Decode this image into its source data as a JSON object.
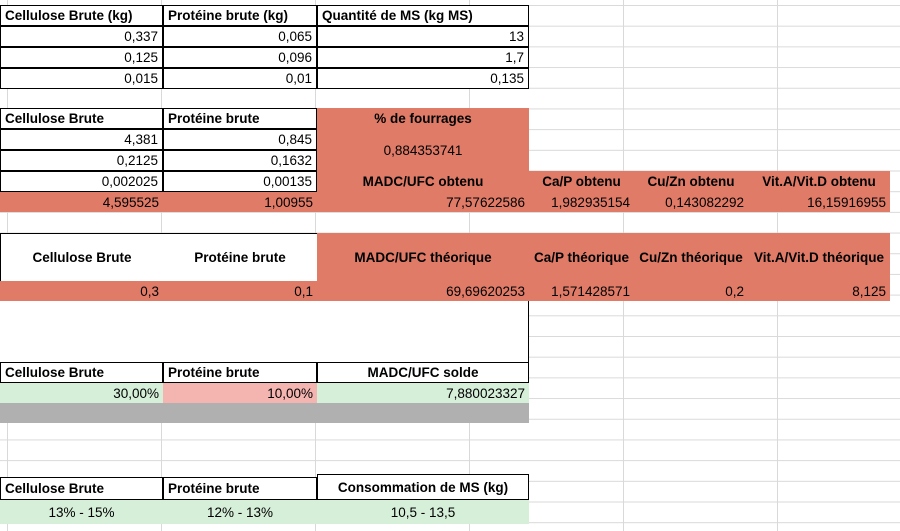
{
  "table1": {
    "headers": [
      "Cellulose Brute (kg)",
      "Protéine brute (kg)",
      "Quantité de MS (kg MS)"
    ],
    "rows": [
      [
        "0,337",
        "0,065",
        "13"
      ],
      [
        "0,125",
        "0,096",
        "1,7"
      ],
      [
        "0,015",
        "0,01",
        "0,135"
      ]
    ]
  },
  "table2": {
    "headers": [
      "Cellulose Brute",
      "Protéine brute"
    ],
    "fourrages_label": "% de fourrages",
    "fourrages_value": "0,884353741",
    "rows": [
      [
        "4,381",
        "0,845"
      ],
      [
        "0,2125",
        "0,1632"
      ],
      [
        "0,002025",
        "0,00135"
      ]
    ],
    "obtenu_headers": [
      "MADC/UFC obtenu",
      "Ca/P obtenu",
      "Cu/Zn obtenu",
      "Vit.A/Vit.D obtenu"
    ],
    "totals": [
      "4,595525",
      "1,00955",
      "77,57622586",
      "1,982935154",
      "0,143082292",
      "16,15916955"
    ]
  },
  "table3": {
    "headers": [
      "Cellulose Brute",
      "Protéine brute",
      "MADC/UFC théorique",
      "Ca/P théorique",
      "Cu/Zn théorique",
      "Vit.A/Vit.D théorique"
    ],
    "values": [
      "0,3",
      "0,1",
      "69,69620253",
      "1,571428571",
      "0,2",
      "8,125"
    ]
  },
  "table4": {
    "headers": [
      "Cellulose Brute",
      "Protéine brute",
      "MADC/UFC solde"
    ],
    "values": [
      "30,00%",
      "10,00%",
      "7,880023327"
    ]
  },
  "table5": {
    "headers": [
      "Cellulose Brute",
      "Protéine brute",
      "Consommation de MS (kg)"
    ],
    "values": [
      "13% - 15%",
      "12% - 13%",
      "10,5 - 13,5"
    ]
  },
  "colors": {
    "salmon": "#e07b68",
    "light_pink": "#f4b5b0",
    "light_green": "#d6efd9",
    "grey": "#b0b0b0"
  }
}
